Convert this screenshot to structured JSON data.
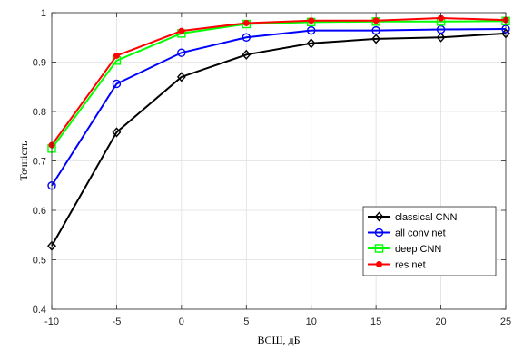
{
  "chart_data": {
    "type": "line",
    "xlabel": "ВСШ, дБ",
    "ylabel": "Точність",
    "xlim": [
      -10,
      25
    ],
    "ylim": [
      0.4,
      1
    ],
    "xticks": [
      -10,
      -5,
      0,
      5,
      10,
      15,
      20,
      25
    ],
    "yticks": [
      0.4,
      0.5,
      0.6,
      0.7,
      0.8,
      0.9,
      1
    ],
    "ytick_labels": [
      "0.4",
      "0.5",
      "0.6",
      "0.7",
      "0.8",
      "0.9",
      "1"
    ],
    "grid": true,
    "legend_position": "lower-right",
    "x": [
      -10,
      -5,
      0,
      5,
      10,
      15,
      20,
      25
    ],
    "series": [
      {
        "name": "classical CNN",
        "color": "#000000",
        "marker": "diamond",
        "values": [
          0.528,
          0.758,
          0.87,
          0.915,
          0.938,
          0.947,
          0.95,
          0.958
        ]
      },
      {
        "name": "all conv net",
        "color": "#0000ff",
        "marker": "circle",
        "values": [
          0.65,
          0.856,
          0.919,
          0.95,
          0.964,
          0.964,
          0.966,
          0.967
        ]
      },
      {
        "name": "deep CNN",
        "color": "#00ff00",
        "marker": "square",
        "values": [
          0.725,
          0.903,
          0.958,
          0.977,
          0.981,
          0.982,
          0.982,
          0.983
        ]
      },
      {
        "name": "res net",
        "color": "#ff0000",
        "marker": "dot",
        "values": [
          0.732,
          0.913,
          0.963,
          0.979,
          0.984,
          0.984,
          0.989,
          0.985
        ]
      }
    ]
  }
}
